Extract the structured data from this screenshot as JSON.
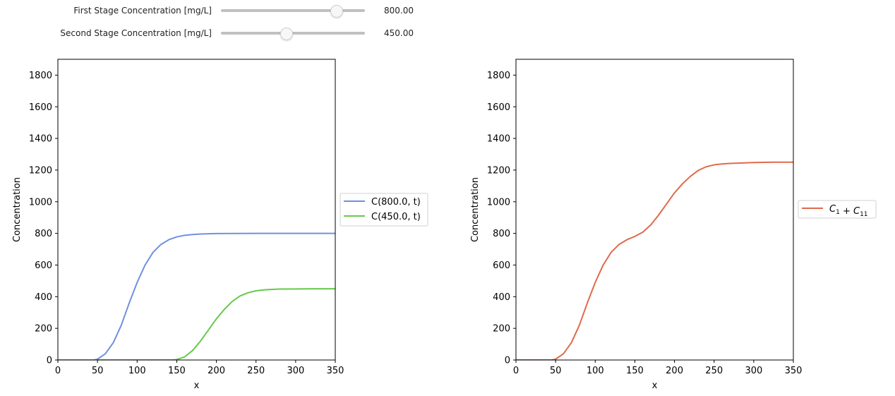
{
  "controls": {
    "sliders": [
      {
        "label": "First Stage Concentration [mg/L]",
        "value": 800,
        "value_text": "800.00",
        "min": 0,
        "max": 1000
      },
      {
        "label": "Second Stage Concentration [mg/L]",
        "value": 450,
        "value_text": "450.00",
        "min": 0,
        "max": 1000
      }
    ]
  },
  "chart_data": [
    {
      "type": "line",
      "title": "",
      "xlabel": "x",
      "ylabel": "Concentration",
      "xlim": [
        0,
        350
      ],
      "ylim": [
        0,
        1900
      ],
      "xticks": [
        0,
        50,
        100,
        150,
        200,
        250,
        300,
        350
      ],
      "yticks": [
        0,
        200,
        400,
        600,
        800,
        1000,
        1200,
        1400,
        1600,
        1800
      ],
      "grid": false,
      "legend": "outside-right",
      "series": [
        {
          "name": "C(800.0, t)",
          "color": "#7090e0",
          "x": [
            0,
            45,
            50,
            60,
            70,
            80,
            90,
            100,
            110,
            120,
            130,
            140,
            150,
            160,
            170,
            180,
            200,
            250,
            300,
            350
          ],
          "y": [
            0,
            0,
            5,
            40,
            110,
            220,
            360,
            490,
            600,
            680,
            730,
            760,
            778,
            788,
            793,
            796,
            799,
            800,
            800,
            800
          ]
        },
        {
          "name": "C(450.0, t)",
          "color": "#66c94a",
          "x": [
            0,
            145,
            150,
            160,
            170,
            180,
            190,
            200,
            210,
            220,
            230,
            240,
            250,
            260,
            270,
            280,
            300,
            325,
            350
          ],
          "y": [
            0,
            0,
            3,
            20,
            60,
            120,
            190,
            260,
            320,
            370,
            405,
            425,
            437,
            443,
            446,
            448,
            449,
            450,
            450
          ]
        }
      ]
    },
    {
      "type": "line",
      "title": "",
      "xlabel": "x",
      "ylabel": "Concentration",
      "xlim": [
        0,
        350
      ],
      "ylim": [
        0,
        1900
      ],
      "xticks": [
        0,
        50,
        100,
        150,
        200,
        250,
        300,
        350
      ],
      "yticks": [
        0,
        200,
        400,
        600,
        800,
        1000,
        1200,
        1400,
        1600,
        1800
      ],
      "grid": false,
      "legend": "outside-right",
      "series": [
        {
          "name": "C1 + C11",
          "color": "#e06a4a",
          "x": [
            0,
            45,
            50,
            60,
            70,
            80,
            90,
            100,
            110,
            120,
            130,
            140,
            150,
            160,
            170,
            180,
            190,
            200,
            210,
            220,
            230,
            240,
            250,
            260,
            270,
            280,
            300,
            325,
            350
          ],
          "y": [
            0,
            0,
            5,
            40,
            110,
            220,
            360,
            490,
            600,
            680,
            730,
            760,
            781,
            808,
            853,
            916,
            986,
            1056,
            1113,
            1160,
            1198,
            1221,
            1233,
            1239,
            1242,
            1244,
            1248,
            1250,
            1250
          ]
        }
      ]
    }
  ]
}
